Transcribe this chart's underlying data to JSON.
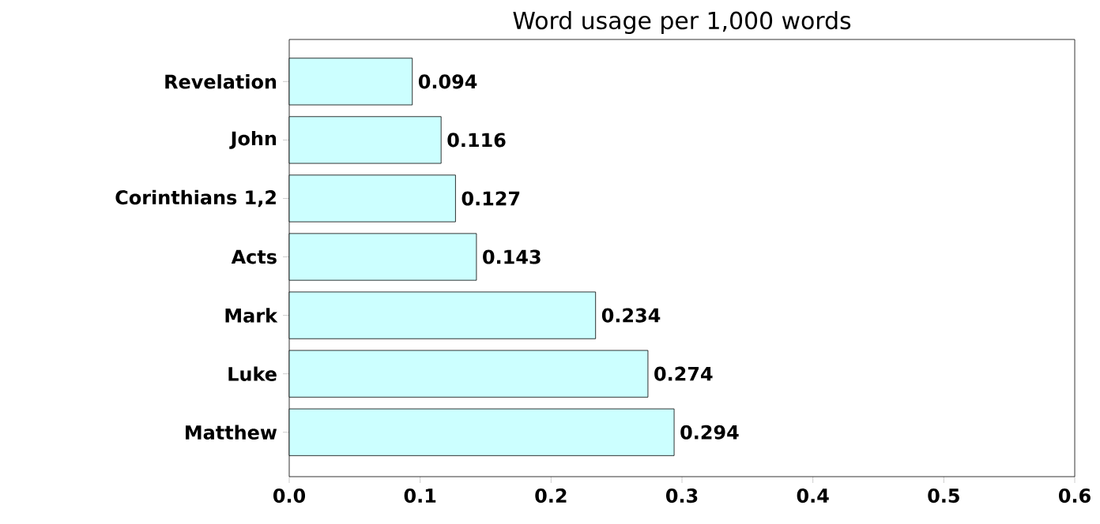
{
  "chart_data": {
    "type": "bar",
    "orientation": "horizontal",
    "title": "Word usage per 1,000 words",
    "categories": [
      "Revelation",
      "John",
      "Corinthians 1,2",
      "Acts",
      "Mark",
      "Luke",
      "Matthew"
    ],
    "values": [
      0.094,
      0.116,
      0.127,
      0.143,
      0.234,
      0.274,
      0.294
    ],
    "color": "#ccffff",
    "data_labels": true,
    "grid": false,
    "xlim": [
      0,
      0.6
    ],
    "xticks": [
      {
        "value": 0,
        "label": "0.0"
      },
      0.1,
      0.2,
      0.3,
      0.4,
      0.5,
      0.6
    ]
  }
}
